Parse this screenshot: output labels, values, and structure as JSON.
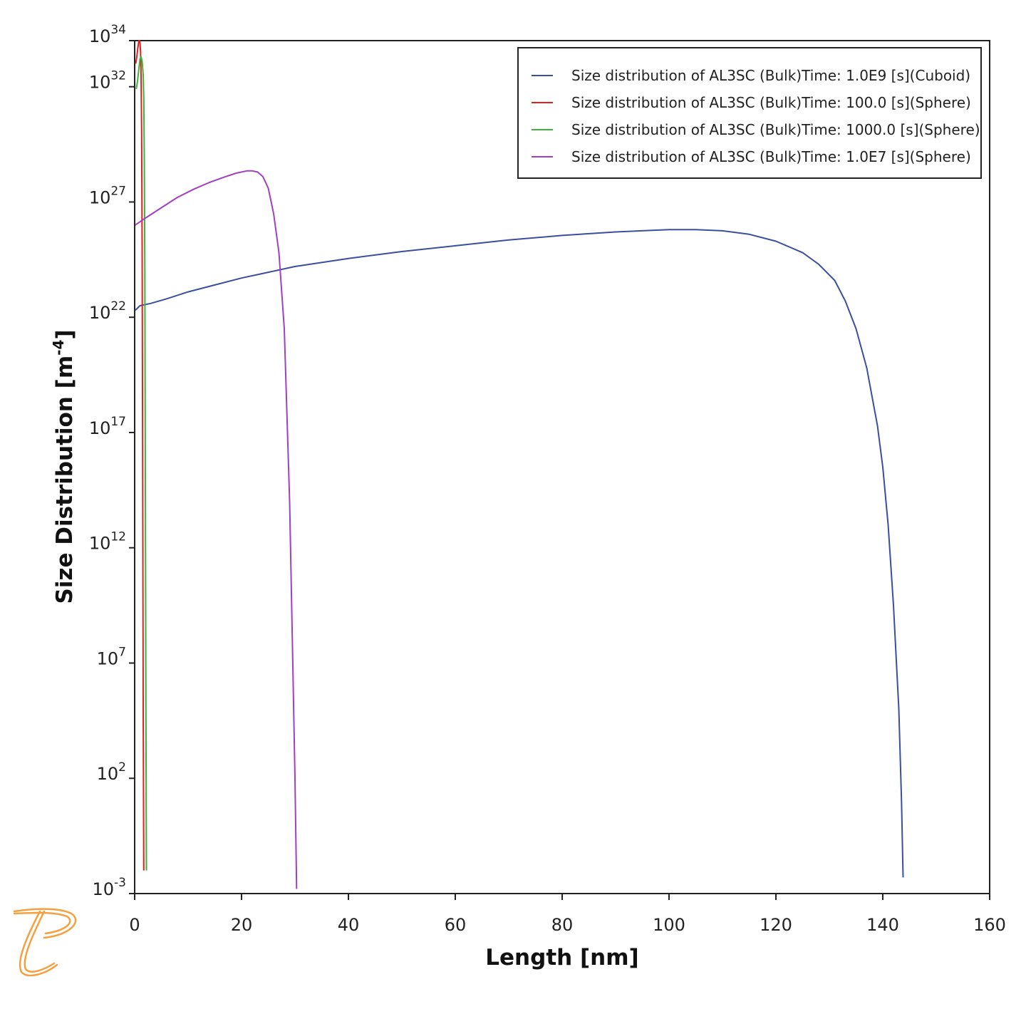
{
  "chart_data": {
    "type": "line",
    "xlabel": "Length [nm]",
    "ylabel": "Size Distribution [m",
    "ylabel_sup": "-4",
    "ylabel_end": "]",
    "xlim": [
      0,
      160
    ],
    "ylim_exponent": [
      -3,
      34
    ],
    "y_scale": "log",
    "x_ticks": [
      0,
      20,
      40,
      60,
      80,
      100,
      120,
      140,
      160
    ],
    "y_ticks": [
      {
        "base": "10",
        "exp": "34"
      },
      {
        "base": "10",
        "exp": "32"
      },
      {
        "base": "10",
        "exp": "27"
      },
      {
        "base": "10",
        "exp": "22"
      },
      {
        "base": "10",
        "exp": "17"
      },
      {
        "base": "10",
        "exp": "12"
      },
      {
        "base": "10",
        "exp": "7"
      },
      {
        "base": "10",
        "exp": "2"
      },
      {
        "base": "10",
        "exp": "-3"
      }
    ],
    "y_tick_exponents": [
      34,
      32,
      27,
      22,
      17,
      12,
      7,
      2,
      -3
    ],
    "grid": false,
    "legend_position": "top-right",
    "series": [
      {
        "name": "Size distribution of AL3SC (Bulk)Time: 1.0E9  [s](Cuboid)",
        "color": "#3a4fa0",
        "x": [
          0.1,
          1,
          3,
          6,
          10,
          15,
          20,
          25,
          30,
          40,
          50,
          60,
          70,
          80,
          90,
          100,
          105,
          110,
          115,
          120,
          125,
          128,
          131,
          133,
          135,
          137,
          139,
          140,
          141,
          142,
          143,
          143.5,
          143.8
        ],
        "log_y": [
          22.3,
          22.5,
          22.6,
          22.8,
          23.1,
          23.4,
          23.7,
          23.95,
          24.2,
          24.55,
          24.85,
          25.1,
          25.35,
          25.55,
          25.7,
          25.8,
          25.8,
          25.75,
          25.6,
          25.3,
          24.8,
          24.3,
          23.6,
          22.7,
          21.5,
          19.8,
          17.3,
          15.5,
          13,
          9.5,
          5,
          1,
          -2.3
        ]
      },
      {
        "name": "Size distribution of AL3SC (Bulk)Time: 100.0  [s](Sphere)",
        "color": "#e02020",
        "x": [
          0.2,
          0.4,
          0.6,
          0.8,
          0.9,
          1.0,
          1.1,
          1.2,
          1.3,
          1.4,
          1.5,
          1.6,
          1.7
        ],
        "log_y": [
          33,
          33.3,
          33.7,
          34,
          34,
          33.9,
          33.5,
          32.5,
          30,
          25,
          15,
          5,
          -2
        ]
      },
      {
        "name": "Size distribution of AL3SC (Bulk)Time: 1000.0  [s](Sphere)",
        "color": "#3cb43c",
        "x": [
          0.3,
          0.5,
          0.8,
          1.0,
          1.2,
          1.4,
          1.6,
          1.7,
          1.8,
          1.9,
          2.0,
          2.1,
          2.2
        ],
        "log_y": [
          31.9,
          32.2,
          32.8,
          33.2,
          33.3,
          33.1,
          32.5,
          31.5,
          29,
          24,
          15,
          5,
          -2
        ]
      },
      {
        "name": "Size distribution of AL3SC (Bulk)Time: 1.0E7  [s](Sphere)",
        "color": "#a040c0",
        "x": [
          0.1,
          2,
          5,
          8,
          11,
          14,
          17,
          19,
          21,
          22,
          23,
          24,
          25,
          26,
          27,
          28,
          29,
          29.5,
          30,
          30.3
        ],
        "log_y": [
          26,
          26.3,
          26.75,
          27.2,
          27.55,
          27.85,
          28.1,
          28.25,
          28.35,
          28.35,
          28.3,
          28.1,
          27.6,
          26.5,
          24.8,
          21.5,
          14,
          8,
          2,
          -2.8
        ]
      }
    ]
  },
  "logo": {
    "name": "thermo-calc-logo-icon",
    "color": "#f5a040"
  }
}
